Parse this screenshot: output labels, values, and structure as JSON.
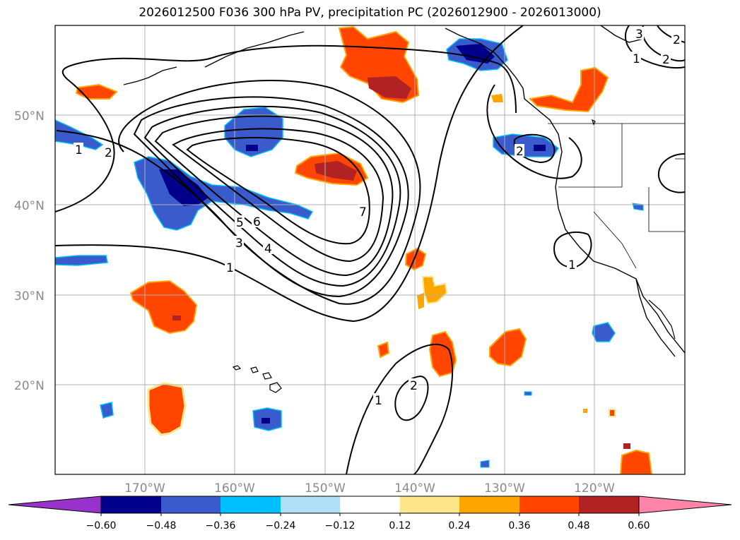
{
  "title": "2026012500 F036 300 hPa PV, precipitation PC (2026012900 - 2026013000)",
  "map": {
    "lon_range": [
      -180,
      -110
    ],
    "lat_range": [
      10,
      60
    ],
    "lat_ticks": [
      {
        "value": 50,
        "label": "50°N"
      },
      {
        "value": 40,
        "label": "40°N"
      },
      {
        "value": 30,
        "label": "30°N"
      },
      {
        "value": 20,
        "label": "20°N"
      }
    ],
    "lon_ticks": [
      {
        "value": -170,
        "label": "170°W"
      },
      {
        "value": -160,
        "label": "160°W"
      },
      {
        "value": -150,
        "label": "150°W"
      },
      {
        "value": -140,
        "label": "140°W"
      },
      {
        "value": -130,
        "label": "130°W"
      },
      {
        "value": -120,
        "label": "120°W"
      }
    ]
  },
  "pv_contour_labels": [
    "1",
    "2",
    "3",
    "4",
    "5",
    "6",
    "7",
    "1",
    "2",
    "1",
    "2",
    "3",
    "2",
    "1",
    "1",
    "2"
  ],
  "colorbar": {
    "levels": [
      "−0.60",
      "−0.48",
      "−0.36",
      "−0.24",
      "−0.12",
      "0.12",
      "0.24",
      "0.36",
      "0.48",
      "0.60"
    ],
    "colors": [
      "#9932cc",
      "#00008b",
      "#3a5bcc",
      "#00bfff",
      "#b0e0f8",
      "#ffffff",
      "#fde68a",
      "#ffa500",
      "#ff4500",
      "#b22222",
      "#ff85a8"
    ]
  }
}
